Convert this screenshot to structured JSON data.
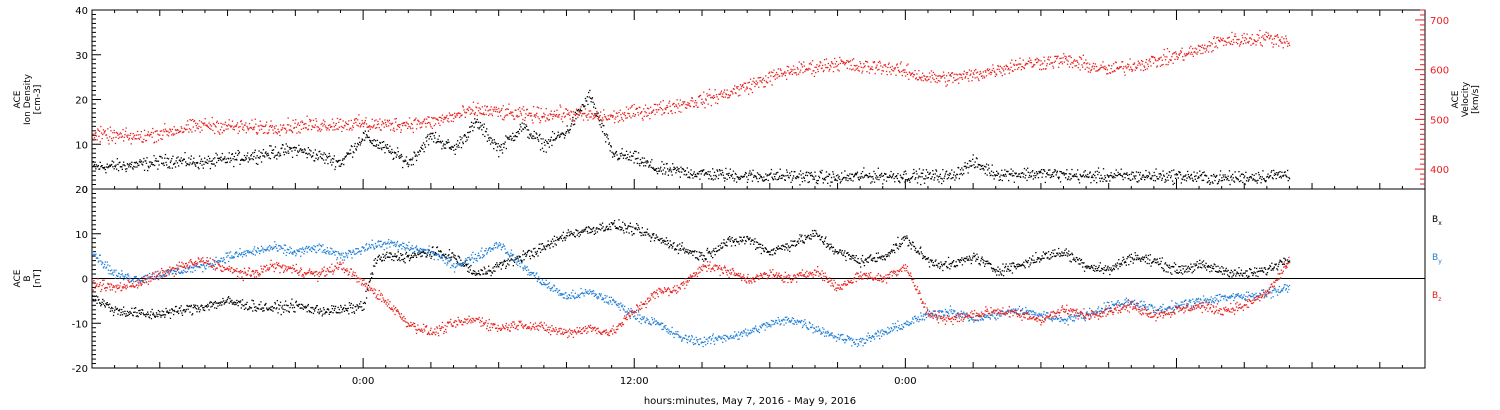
{
  "chart_data": [
    {
      "type": "scatter",
      "title": "",
      "ylabel_lines": [
        "ACE",
        "Ion Density",
        "[cm-3]"
      ],
      "y2label_lines": [
        "ACE",
        "Velocity",
        "[km/s]"
      ],
      "ylim": [
        0,
        40
      ],
      "y_ticks": [
        0,
        10,
        20,
        30,
        40
      ],
      "y2lim": [
        360,
        720
      ],
      "y2_ticks": [
        400,
        500,
        600,
        700
      ],
      "xlim_hours": [
        -12,
        47
      ],
      "x_tick_hours": [
        0,
        12,
        24
      ],
      "x_tick_labels": [
        "0:00",
        "12:00",
        "0:00"
      ],
      "series": [
        {
          "key": "density",
          "color": "#000000",
          "axis": "left",
          "points": [
            [
              -12,
              5
            ],
            [
              -10,
              5.5
            ],
            [
              -8.5,
              6.5
            ],
            [
              -7,
              6
            ],
            [
              -5,
              7.5
            ],
            [
              -3,
              9
            ],
            [
              -1,
              6
            ],
            [
              0,
              12
            ],
            [
              1,
              9
            ],
            [
              2,
              6
            ],
            [
              3,
              12
            ],
            [
              4,
              9
            ],
            [
              5,
              15
            ],
            [
              6,
              9
            ],
            [
              7,
              14
            ],
            [
              8,
              10
            ],
            [
              9,
              13
            ],
            [
              10,
              21
            ],
            [
              11,
              8
            ],
            [
              12,
              7
            ],
            [
              13,
              4.5
            ],
            [
              15,
              3.5
            ],
            [
              17,
              3
            ],
            [
              19,
              3
            ],
            [
              21,
              2.5
            ],
            [
              22,
              3
            ],
            [
              24,
              3
            ],
            [
              26,
              3
            ],
            [
              27,
              6
            ],
            [
              28,
              3.5
            ],
            [
              30,
              3.5
            ],
            [
              32,
              3
            ],
            [
              34,
              3
            ],
            [
              36,
              3
            ],
            [
              38,
              2.5
            ],
            [
              40,
              3
            ],
            [
              41,
              3.5
            ]
          ],
          "noise": 2.2
        },
        {
          "key": "velocity",
          "color": "#e8201e",
          "axis": "right",
          "points": [
            [
              -12,
              470
            ],
            [
              -10,
              465
            ],
            [
              -8.5,
              478
            ],
            [
              -7,
              490
            ],
            [
              -5,
              484
            ],
            [
              -3,
              488
            ],
            [
              -1,
              492
            ],
            [
              0,
              492
            ],
            [
              1,
              490
            ],
            [
              3,
              495
            ],
            [
              5,
              520
            ],
            [
              7,
              510
            ],
            [
              9,
              512
            ],
            [
              11,
              505
            ],
            [
              12,
              515
            ],
            [
              13,
              522
            ],
            [
              15,
              540
            ],
            [
              16,
              552
            ],
            [
              17,
              568
            ],
            [
              18,
              585
            ],
            [
              19,
              600
            ],
            [
              20,
              606
            ],
            [
              21,
              615
            ],
            [
              22,
              605
            ],
            [
              23,
              608
            ],
            [
              25,
              585
            ],
            [
              26,
              584
            ],
            [
              27,
              590
            ],
            [
              29,
              612
            ],
            [
              31,
              620
            ],
            [
              33,
              600
            ],
            [
              34,
              610
            ],
            [
              35,
              618
            ],
            [
              37,
              640
            ],
            [
              38,
              660
            ],
            [
              39,
              662
            ],
            [
              40,
              665
            ],
            [
              41,
              658
            ]
          ],
          "noise": 22
        }
      ]
    },
    {
      "type": "scatter",
      "title": "",
      "ylabel_lines": [
        "ACE",
        "B",
        "[nT]"
      ],
      "ylim": [
        -20,
        20
      ],
      "y_ticks": [
        -20,
        -10,
        0,
        10,
        20
      ],
      "xlim_hours": [
        -12,
        47
      ],
      "x_tick_hours": [
        0,
        12,
        24
      ],
      "x_tick_labels": [
        "0:00",
        "12:00",
        "0:00"
      ],
      "zero_line": true,
      "series": [
        {
          "key": "bx",
          "name": "Bx",
          "color": "#000000",
          "points": [
            [
              -12,
              -4
            ],
            [
              -11,
              -7
            ],
            [
              -9.5,
              -8
            ],
            [
              -8,
              -7
            ],
            [
              -7,
              -6
            ],
            [
              -6,
              -5
            ],
            [
              -5,
              -6
            ],
            [
              -4,
              -6.5
            ],
            [
              -3,
              -6
            ],
            [
              -2,
              -7
            ],
            [
              -1,
              -7
            ],
            [
              0,
              -6
            ],
            [
              0.5,
              4
            ],
            [
              1,
              5
            ],
            [
              2,
              5
            ],
            [
              3,
              6
            ],
            [
              4,
              5
            ],
            [
              5,
              1
            ],
            [
              6,
              3
            ],
            [
              7,
              5
            ],
            [
              8,
              7
            ],
            [
              9,
              10
            ],
            [
              10,
              11
            ],
            [
              11,
              12
            ],
            [
              12,
              11
            ],
            [
              13,
              9
            ],
            [
              14,
              7
            ],
            [
              15,
              5
            ],
            [
              16,
              8
            ],
            [
              17,
              9
            ],
            [
              18,
              6
            ],
            [
              19,
              8
            ],
            [
              20,
              10
            ],
            [
              21,
              6
            ],
            [
              22,
              4
            ],
            [
              23,
              5
            ],
            [
              24,
              9
            ],
            [
              25,
              4
            ],
            [
              26,
              3
            ],
            [
              27,
              5
            ],
            [
              28,
              2
            ],
            [
              29,
              3
            ],
            [
              30,
              5
            ],
            [
              31,
              6
            ],
            [
              32,
              3
            ],
            [
              33,
              2
            ],
            [
              34,
              5
            ],
            [
              35,
              4
            ],
            [
              36,
              2
            ],
            [
              37,
              3
            ],
            [
              38,
              2
            ],
            [
              39,
              1
            ],
            [
              40,
              2
            ],
            [
              41,
              5
            ]
          ],
          "noise": 1.8
        },
        {
          "key": "by",
          "name": "By",
          "color": "#1f7fd6",
          "points": [
            [
              -12,
              6
            ],
            [
              -11,
              1
            ],
            [
              -10,
              0
            ],
            [
              -9,
              1
            ],
            [
              -8,
              2
            ],
            [
              -7,
              3
            ],
            [
              -6,
              5
            ],
            [
              -5,
              6
            ],
            [
              -4,
              7
            ],
            [
              -3,
              6
            ],
            [
              -2,
              7
            ],
            [
              -1,
              5
            ],
            [
              0,
              7
            ],
            [
              1,
              8
            ],
            [
              2,
              7
            ],
            [
              3,
              6
            ],
            [
              4,
              3
            ],
            [
              5,
              5
            ],
            [
              6,
              8
            ],
            [
              7,
              3
            ],
            [
              8,
              -1
            ],
            [
              9,
              -4
            ],
            [
              10,
              -3
            ],
            [
              11,
              -5
            ],
            [
              12,
              -8
            ],
            [
              13,
              -10
            ],
            [
              14,
              -13
            ],
            [
              15,
              -14
            ],
            [
              16,
              -13
            ],
            [
              17,
              -12
            ],
            [
              18,
              -10
            ],
            [
              19,
              -9
            ],
            [
              20,
              -11
            ],
            [
              21,
              -13
            ],
            [
              22,
              -14
            ],
            [
              23,
              -12
            ],
            [
              24,
              -10
            ],
            [
              25,
              -8
            ],
            [
              26,
              -7
            ],
            [
              27,
              -9
            ],
            [
              28,
              -8
            ],
            [
              29,
              -7
            ],
            [
              30,
              -8
            ],
            [
              31,
              -9
            ],
            [
              32,
              -8
            ],
            [
              33,
              -6
            ],
            [
              34,
              -5
            ],
            [
              35,
              -7
            ],
            [
              36,
              -6
            ],
            [
              37,
              -5
            ],
            [
              38,
              -4
            ],
            [
              39,
              -4
            ],
            [
              40,
              -3
            ],
            [
              41,
              -2
            ]
          ],
          "noise": 1.6
        },
        {
          "key": "bz",
          "name": "Bz",
          "color": "#e8201e",
          "points": [
            [
              -12,
              -1
            ],
            [
              -11,
              -2
            ],
            [
              -10,
              -1
            ],
            [
              -9,
              1
            ],
            [
              -8,
              3
            ],
            [
              -7,
              4
            ],
            [
              -6,
              2
            ],
            [
              -5,
              1
            ],
            [
              -4,
              3
            ],
            [
              -3,
              2
            ],
            [
              -2,
              1
            ],
            [
              -1,
              3
            ],
            [
              0,
              -1
            ],
            [
              1,
              -5
            ],
            [
              2,
              -10
            ],
            [
              3,
              -12
            ],
            [
              4,
              -10
            ],
            [
              5,
              -9
            ],
            [
              6,
              -11
            ],
            [
              7,
              -10
            ],
            [
              8,
              -11
            ],
            [
              9,
              -12
            ],
            [
              10,
              -11
            ],
            [
              11,
              -12
            ],
            [
              12,
              -7
            ],
            [
              13,
              -3
            ],
            [
              14,
              -2
            ],
            [
              15,
              3
            ],
            [
              16,
              2
            ],
            [
              17,
              0
            ],
            [
              18,
              1
            ],
            [
              19,
              0
            ],
            [
              20,
              2
            ],
            [
              21,
              -2
            ],
            [
              22,
              1
            ],
            [
              23,
              0
            ],
            [
              24,
              3
            ],
            [
              25,
              -8
            ],
            [
              26,
              -9
            ],
            [
              27,
              -8
            ],
            [
              28,
              -7
            ],
            [
              29,
              -8
            ],
            [
              30,
              -9
            ],
            [
              31,
              -7
            ],
            [
              32,
              -8
            ],
            [
              33,
              -7
            ],
            [
              34,
              -6
            ],
            [
              35,
              -8
            ],
            [
              36,
              -7
            ],
            [
              37,
              -6
            ],
            [
              38,
              -7
            ],
            [
              39,
              -6
            ],
            [
              40,
              -3
            ],
            [
              41,
              4
            ]
          ],
          "noise": 1.7
        }
      ],
      "legend": {
        "placement": "right",
        "entries": [
          {
            "base": "B",
            "sub": "x",
            "color": "#000000"
          },
          {
            "base": "B",
            "sub": "y",
            "color": "#1f7fd6"
          },
          {
            "base": "B",
            "sub": "z",
            "color": "#e8201e"
          }
        ]
      }
    }
  ],
  "xlabel": "hours:minutes, May  7, 2016 - May  9, 2016"
}
